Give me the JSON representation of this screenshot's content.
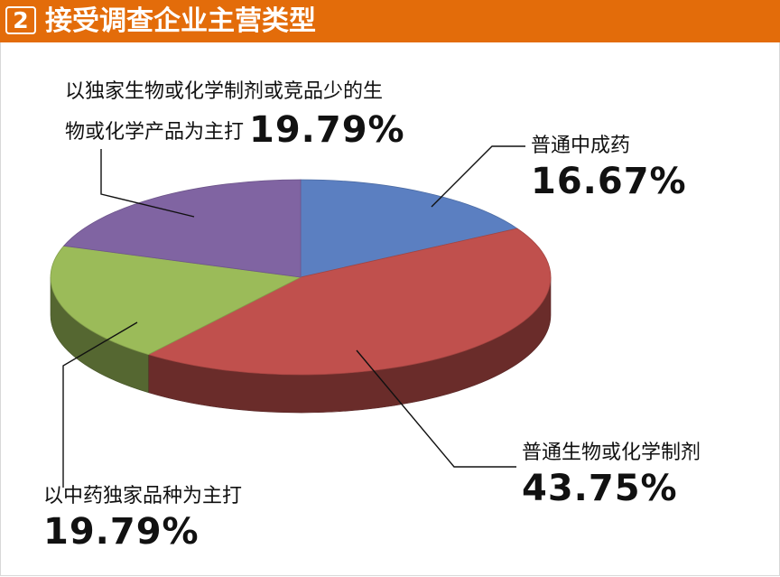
{
  "header": {
    "number": "2",
    "title": "接受调查企业主营类型"
  },
  "chart_data": {
    "type": "pie",
    "style": "3d",
    "categories": [
      "普通中成药",
      "普通生物或化学制剂",
      "以中药独家品种为主打",
      "以独家生物或化学制剂或竞品少的生物或化学产品为主打"
    ],
    "values": [
      16.67,
      43.75,
      19.79,
      19.79
    ],
    "unit": "%",
    "colors": [
      "#5b7fc1",
      "#c0504d",
      "#9bbb59",
      "#8064a2"
    ],
    "labels": [
      {
        "name": "普通中成药",
        "percent": "16.67%"
      },
      {
        "name": "普通生物或化学制剂",
        "percent": "43.75%"
      },
      {
        "name": "以中药独家品种为主打",
        "percent": "19.79%"
      },
      {
        "name_line1": "以独家生物或化学制剂或竞品少的生",
        "name_line2": "物或化学产品为主打",
        "percent": "19.79%"
      }
    ]
  }
}
